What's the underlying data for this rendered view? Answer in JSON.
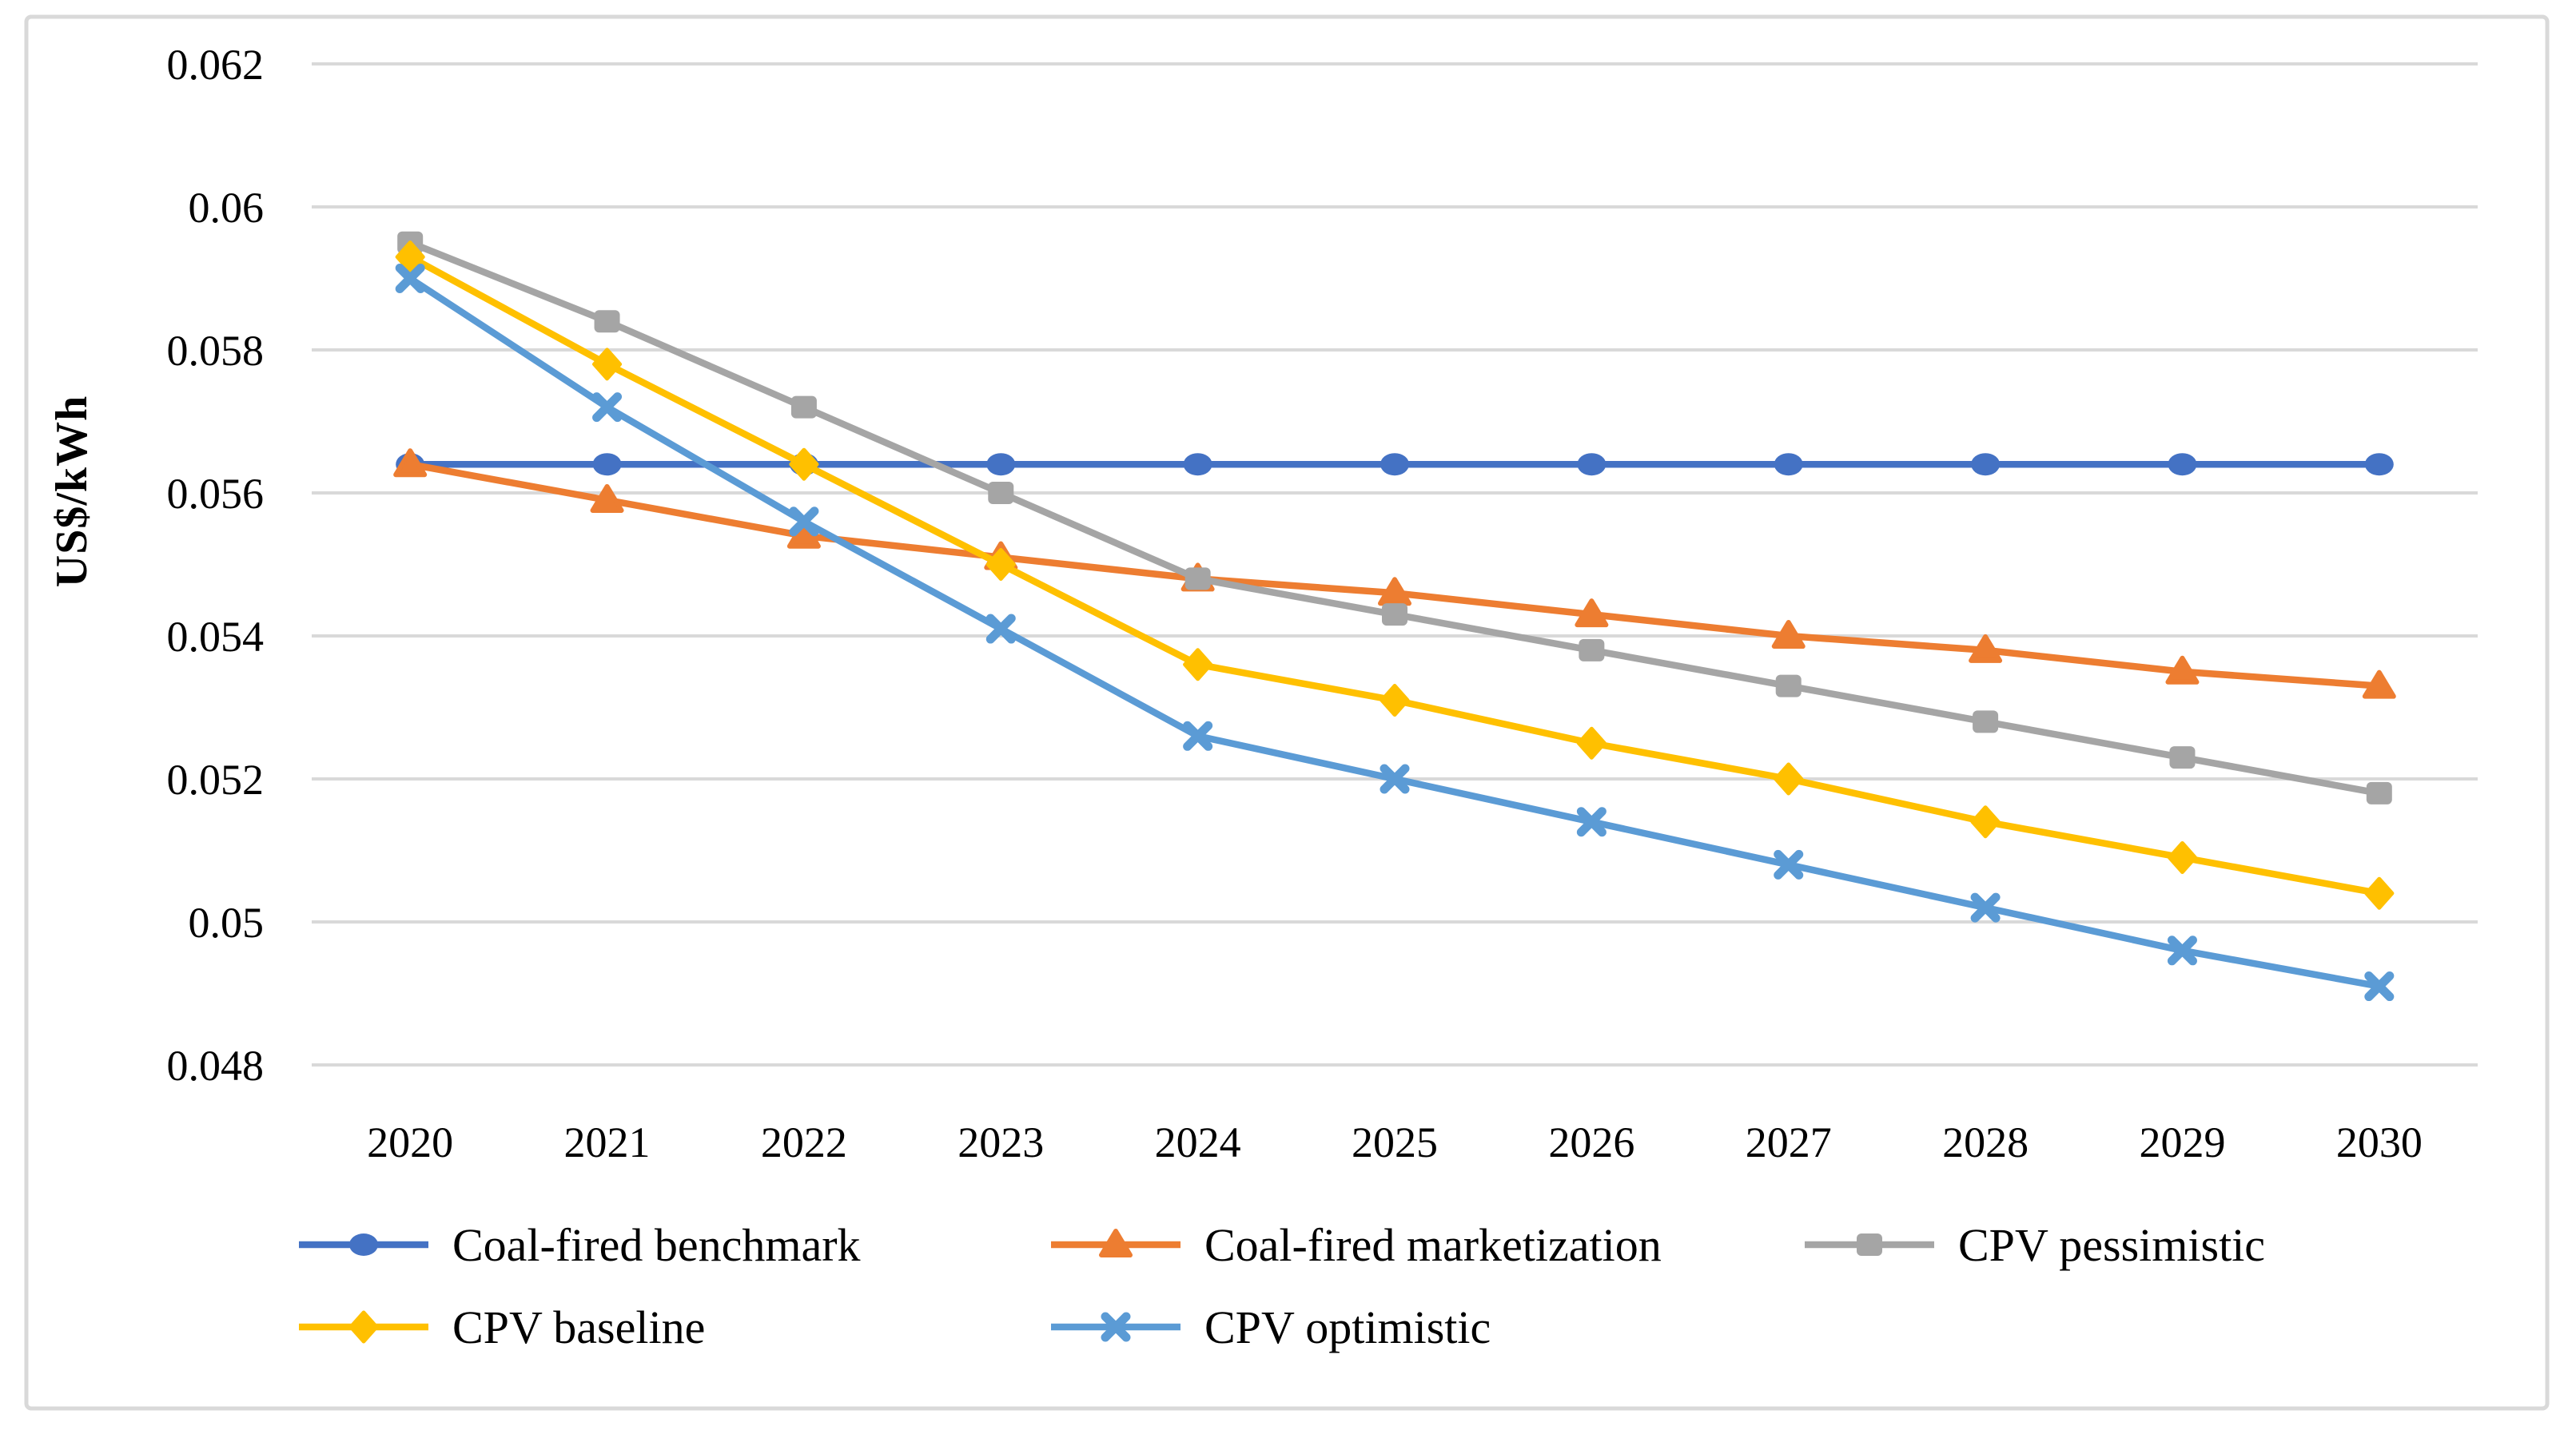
{
  "figure": {
    "background": "#ffffff",
    "border_color": "#d9d9d9",
    "gridline_color": "#d9d9d9",
    "text_color": "#000000"
  },
  "y_axis": {
    "title": "US$/kWh",
    "tick_labels": [
      "0.062",
      "0.06",
      "0.058",
      "0.056",
      "0.054",
      "0.052",
      "0.05",
      "0.048"
    ],
    "tick_values": [
      0.062,
      0.06,
      0.058,
      0.056,
      0.054,
      0.052,
      0.05,
      0.048
    ]
  },
  "x_axis": {
    "categories": [
      "2020",
      "2021",
      "2022",
      "2023",
      "2024",
      "2025",
      "2026",
      "2027",
      "2028",
      "2029",
      "2030"
    ]
  },
  "chart_data": {
    "type": "line",
    "title": "",
    "xlabel": "",
    "ylabel": "US$/kWh",
    "ylim": [
      0.048,
      0.062
    ],
    "ystep": 0.002,
    "grid": true,
    "legend_position": "bottom",
    "x": [
      2020,
      2021,
      2022,
      2023,
      2024,
      2025,
      2026,
      2027,
      2028,
      2029,
      2030
    ],
    "series": [
      {
        "name": "Coal-fired benchmark",
        "color": "#4472C4",
        "marker": "circle",
        "values": [
          0.0564,
          0.0564,
          0.0564,
          0.0564,
          0.0564,
          0.0564,
          0.0564,
          0.0564,
          0.0564,
          0.0564,
          0.0564
        ]
      },
      {
        "name": "Coal-fired marketization",
        "color": "#ED7D31",
        "marker": "triangle",
        "values": [
          0.0564,
          0.0559,
          0.0554,
          0.0551,
          0.0548,
          0.0546,
          0.0543,
          0.054,
          0.0538,
          0.0535,
          0.0533
        ]
      },
      {
        "name": "CPV pessimistic",
        "color": "#A5A5A5",
        "marker": "square",
        "values": [
          0.0595,
          0.0584,
          0.0572,
          0.056,
          0.0548,
          0.0543,
          0.0538,
          0.0533,
          0.0528,
          0.0523,
          0.0518
        ]
      },
      {
        "name": "CPV baseline",
        "color": "#FFC000",
        "marker": "diamond",
        "values": [
          0.0593,
          0.0578,
          0.0564,
          0.055,
          0.0536,
          0.0531,
          0.0525,
          0.052,
          0.0514,
          0.0509,
          0.0504
        ]
      },
      {
        "name": "CPV optimistic",
        "color": "#5B9BD5",
        "marker": "x",
        "values": [
          0.059,
          0.0572,
          0.0556,
          0.0541,
          0.0526,
          0.052,
          0.0514,
          0.0508,
          0.0502,
          0.0496,
          0.0491
        ]
      }
    ]
  }
}
